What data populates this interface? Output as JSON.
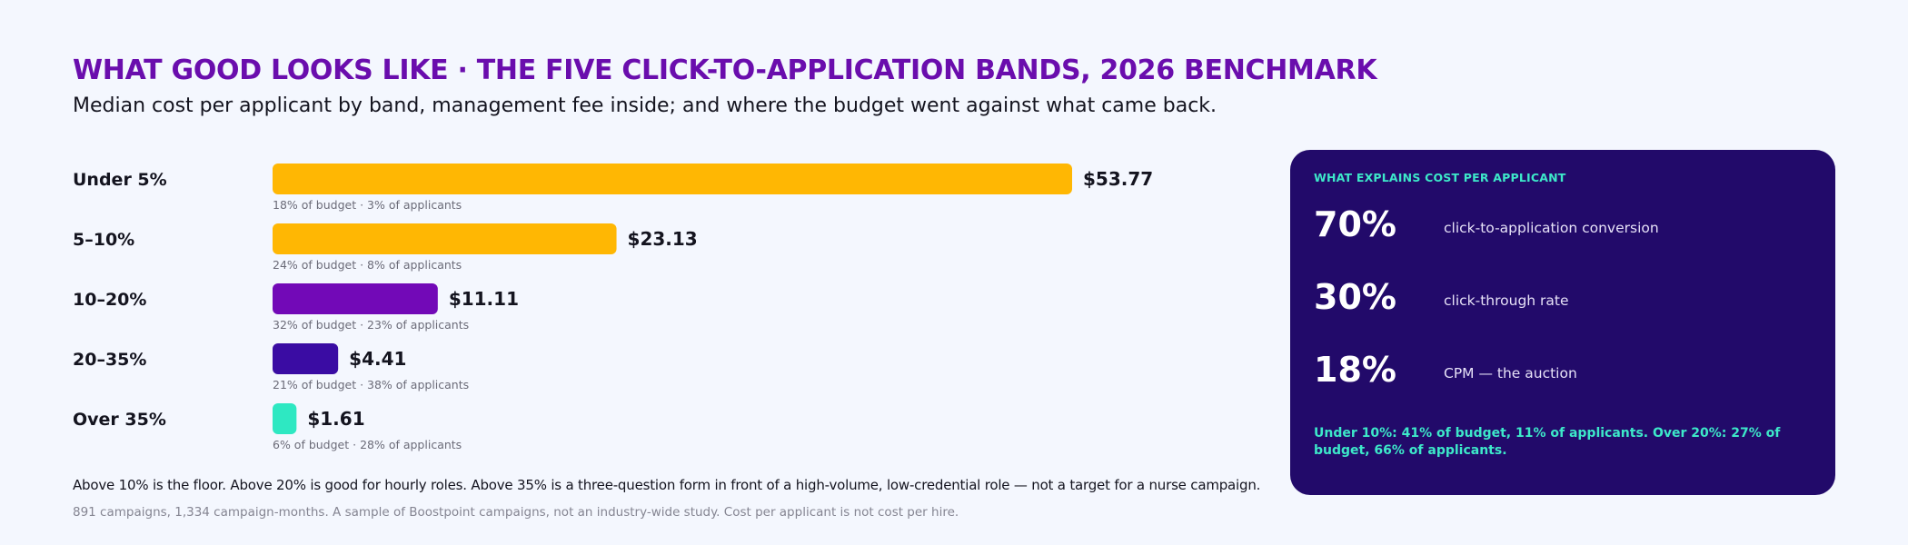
{
  "header": {
    "title": "WHAT GOOD LOOKS LIKE · THE FIVE CLICK-TO-APPLICATION BANDS, 2026 BENCHMARK",
    "subtitle": "Median cost per applicant by band, management fee inside; and where the budget went against what came back."
  },
  "chart_data": {
    "type": "bar",
    "orientation": "horizontal",
    "title": "WHAT GOOD LOOKS LIKE · THE FIVE CLICK-TO-APPLICATION BANDS, 2026 BENCHMARK",
    "subtitle": "Median cost per applicant by band, management fee inside; and where the budget went against what came back.",
    "categories": [
      "Under 5%",
      "5–10%",
      "10–20%",
      "20–35%",
      "Over 35%"
    ],
    "values": [
      53.77,
      23.13,
      11.11,
      4.41,
      1.61
    ],
    "value_labels": [
      "$53.77",
      "$23.13",
      "$11.11",
      "$4.41",
      "$1.61"
    ],
    "budget_share_pct": [
      18,
      24,
      32,
      21,
      6
    ],
    "applicant_share_pct": [
      3,
      8,
      23,
      38,
      28
    ],
    "annotations": [
      "18% of budget · 3% of applicants",
      "24% of budget · 8% of applicants",
      "32% of budget · 23% of applicants",
      "21% of budget · 38% of applicants",
      "6% of budget · 28% of applicants"
    ],
    "colors": [
      "#ffb703",
      "#ffb703",
      "#7209b7",
      "#3a0ca3",
      "#2ee8c2"
    ],
    "xlim": [
      0,
      53.77
    ],
    "grid": false,
    "legend": "none"
  },
  "footer": {
    "note": "Above 10% is the floor. Above 20% is good for hourly roles. Above 35% is a three-question form in front of a high-volume, low-credential role — not a target for a nurse campaign.",
    "source": "891 campaigns, 1,334 campaign-months. A sample of Boostpoint campaigns, not an industry-wide study. Cost per applicant is not cost per hire."
  },
  "panel": {
    "heading": "WHAT EXPLAINS COST PER APPLICANT",
    "stats": [
      {
        "value": "70%",
        "label": "click-to-application conversion"
      },
      {
        "value": "30%",
        "label": "click-through rate"
      },
      {
        "value": "18%",
        "label": "CPM — the auction"
      }
    ],
    "note": "Under 10%: 41% of budget, 11% of applicants. Over 20%: 27% of budget, 66% of applicants."
  },
  "colors": {
    "title": "#6a0dad",
    "panel_bg": "#220a6a",
    "panel_accent": "#3de8c9",
    "page_bg": "#f4f7fe"
  }
}
